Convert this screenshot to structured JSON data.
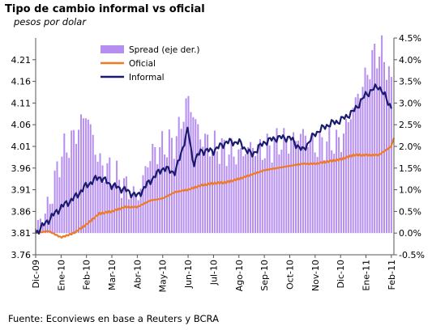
{
  "chart_data": {
    "type": "bar+line",
    "title": "Tipo de cambio informal vs oficial",
    "subtitle": "pesos por dolar",
    "source": "Fuente: Econviews en base a Reuters y BCRA",
    "x_labels": [
      "Dic-09",
      "Ene-10",
      "Feb-10",
      "Mar-10",
      "Abr-10",
      "May-10",
      "Jun-10",
      "Jul-10",
      "Ago-10",
      "Sep-10",
      "Oct-10",
      "Nov-10",
      "Dic-10",
      "Ene-11",
      "Feb-11"
    ],
    "y_left": {
      "range": [
        3.76,
        4.26
      ],
      "ticks": [
        "4.21",
        "4.16",
        "4.11",
        "4.06",
        "4.01",
        "3.96",
        "3.91",
        "3.86",
        "3.81",
        "3.76"
      ]
    },
    "y_right": {
      "range": [
        -0.5,
        4.5
      ],
      "ticks": [
        "4.5%",
        "4.0%",
        "3.5%",
        "3.0%",
        "2.5%",
        "2.0%",
        "1.5%",
        "1.0%",
        "0.5%",
        "0.0%",
        "-0.5%"
      ]
    },
    "legend": [
      "Spread (eje der.)",
      "Oficial",
      "Informal"
    ],
    "colors": {
      "spread": "#b68ef0",
      "oficial": "#f07a24",
      "informal": "#1a1a6e"
    },
    "series": [
      {
        "name": "Spread (eje der.)",
        "axis": "right",
        "x_months": [
          0,
          0.5,
          1,
          1.5,
          2,
          2.5,
          3,
          3.5,
          4,
          4.5,
          5,
          5.5,
          6,
          6.5,
          7,
          7.5,
          8,
          8.5,
          9,
          9.5,
          10,
          10.5,
          11,
          11.5,
          12,
          12.5,
          13,
          13.3,
          13.6,
          13.8,
          14
        ],
        "values": [
          0.1,
          0.6,
          1.8,
          2.2,
          2.8,
          1.6,
          1.4,
          1.1,
          0.8,
          1.8,
          2.0,
          2.1,
          3.1,
          2.2,
          2.0,
          1.9,
          1.8,
          2.0,
          1.9,
          2.1,
          2.1,
          2.3,
          2.0,
          2.1,
          2.1,
          2.9,
          3.6,
          4.1,
          4.2,
          3.9,
          3.4
        ]
      },
      {
        "name": "Oficial",
        "axis": "left",
        "x_months": [
          0,
          0.5,
          1,
          1.5,
          2,
          2.5,
          3,
          3.5,
          4,
          4.5,
          5,
          5.5,
          6,
          6.5,
          7,
          7.5,
          8,
          8.5,
          9,
          9.5,
          10,
          10.5,
          11,
          11.5,
          12,
          12.5,
          13,
          13.5,
          14,
          14.1
        ],
        "values": [
          3.81,
          3.815,
          3.8,
          3.81,
          3.83,
          3.855,
          3.86,
          3.87,
          3.87,
          3.885,
          3.89,
          3.905,
          3.91,
          3.92,
          3.925,
          3.927,
          3.935,
          3.945,
          3.955,
          3.96,
          3.965,
          3.97,
          3.97,
          3.975,
          3.98,
          3.99,
          3.99,
          3.99,
          4.01,
          4.03
        ]
      },
      {
        "name": "Informal",
        "axis": "left",
        "x_months": [
          0,
          0.5,
          1,
          1.5,
          2,
          2.5,
          3,
          3.5,
          4,
          4.5,
          5,
          5.5,
          6,
          6.2,
          6.5,
          7,
          7.5,
          8,
          8.5,
          9,
          9.5,
          10,
          10.5,
          11,
          11.5,
          12,
          12.5,
          13,
          13.5,
          13.8,
          14
        ],
        "values": [
          3.81,
          3.84,
          3.87,
          3.89,
          3.92,
          3.94,
          3.92,
          3.91,
          3.895,
          3.93,
          3.96,
          3.95,
          4.05,
          3.97,
          4.0,
          4.0,
          4.02,
          4.02,
          3.99,
          4.02,
          4.03,
          4.03,
          4.0,
          4.04,
          4.06,
          4.07,
          4.09,
          4.13,
          4.15,
          4.12,
          4.1
        ]
      }
    ]
  }
}
